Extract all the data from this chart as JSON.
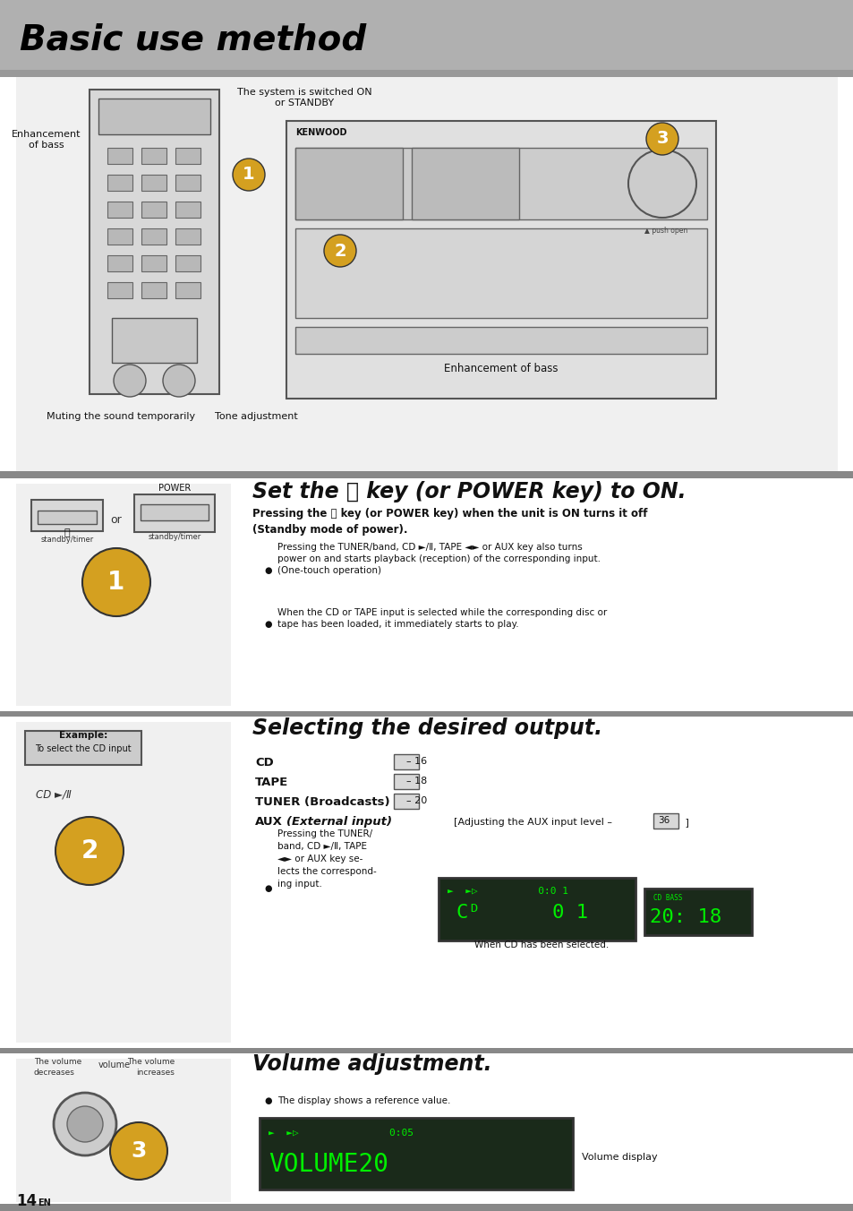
{
  "title": "Basic use method",
  "bg_header": "#b0b0b0",
  "bg_main": "#e8e8e8",
  "bg_white": "#ffffff",
  "bg_section": "#f0f0f0",
  "divider_color": "#888888",
  "text_black": "#000000",
  "text_dark": "#111111",
  "header_title": "Basic use method",
  "section1_left_labels": [
    "Enhancement\nof bass",
    "Muting the sound temporarily",
    "Tone adjustment",
    "The system is switched ON\nor STANDBY",
    "Enhancement of bass"
  ],
  "section2_title": "Set the ⏻ key (or POWER key) to ON.",
  "section2_bold": "Pressing the ⏻ key (or POWER key) when the unit is ON turns it off\n(Standby mode of power).",
  "section2_bullet1": "Pressing the TUNER/band, CD ►/Ⅱ, TAPE ◄► or AUX key also turns\npower on and starts playback (reception) of the corresponding input.\n(One-touch operation)",
  "section2_bullet2": "When the CD or TAPE input is selected while the corresponding disc or\ntape has been loaded, it immediately starts to play.",
  "section3_title": "Selecting the desired output.",
  "section3_lines": [
    "CD                  – 16",
    "TAPE               – 18",
    "TUNER (Broadcasts)  – 20",
    "AUX (External input)  [Adjusting the AUX input level – 36 ]"
  ],
  "section3_bullet": "Pressing the TUNER/\nband, CD ►/Ⅱ, TAPE\n◄► or AUX key se-\nlects the correspond-\ning input.",
  "section3_display": "CD   0:01\n       1",
  "section3_display2": "20: 18",
  "section3_caption": "When CD has been selected.",
  "section4_title": "Volume adjustment.",
  "section4_bullet": "The display shows a reference value.",
  "section4_display": "0:05\nVOLUME20",
  "section4_display_caption": "Volume display",
  "section2_left_label1": "POWER",
  "section2_left_label2": "or",
  "section2_left_label3": "standby/timer",
  "section3_left_label": "Example:\nTo select the CD input",
  "section3_left_label2": "CD ►/Ⅱ",
  "section4_left_labels": [
    "The volume\ndecreases",
    "volume",
    "The volume\nincreases"
  ],
  "page_num": "14",
  "page_en": "EN"
}
